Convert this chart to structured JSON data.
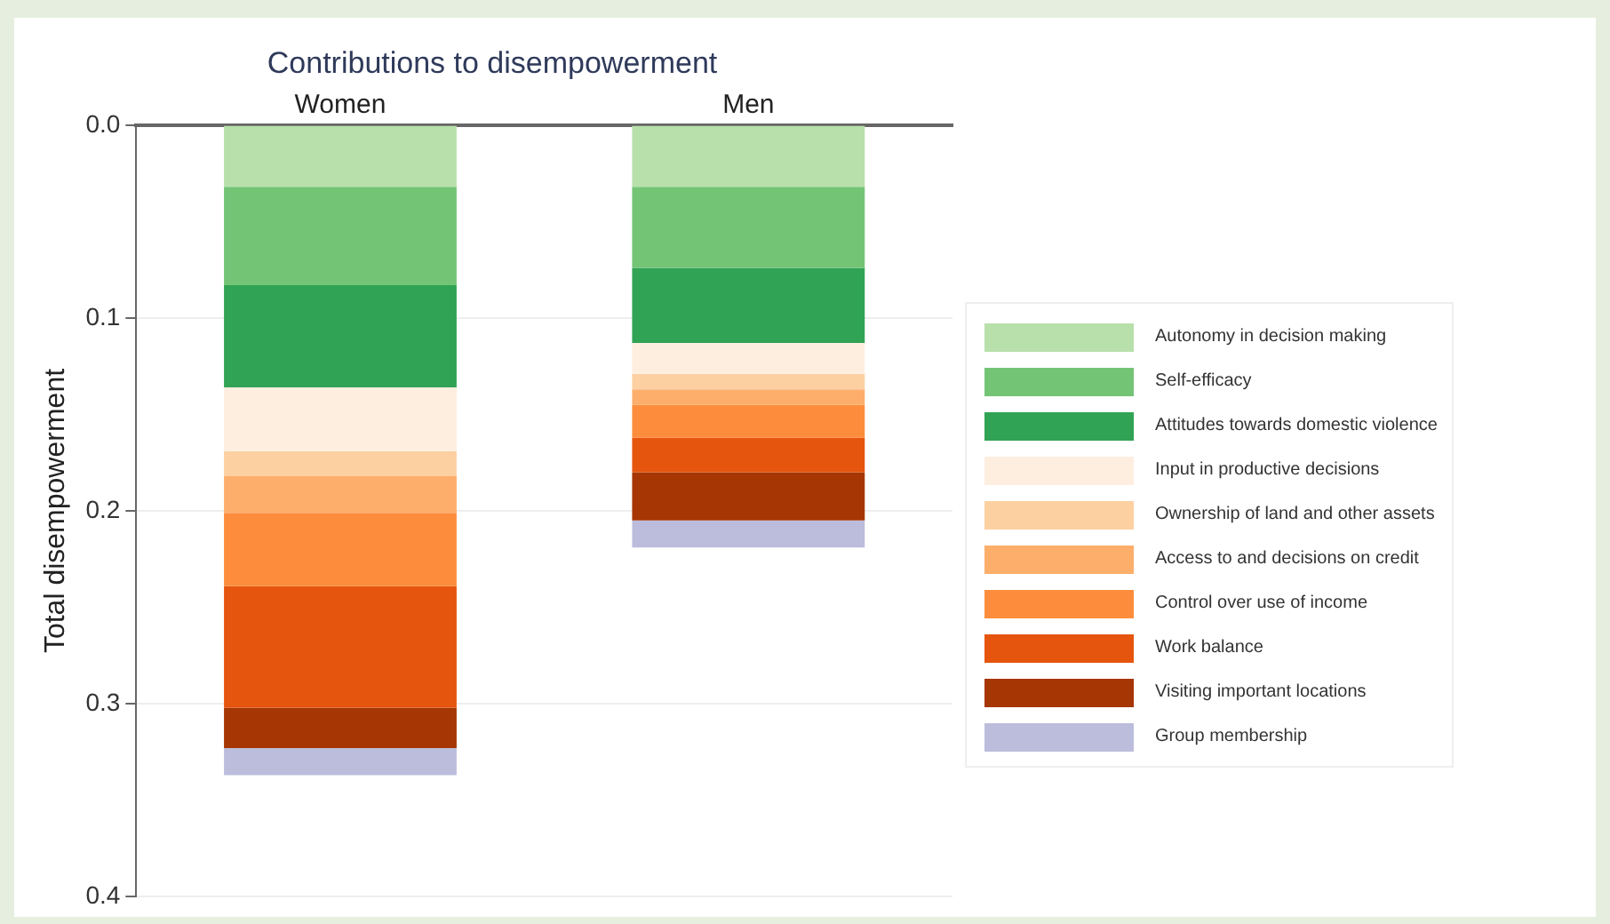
{
  "chart_data": {
    "type": "bar",
    "title": "Contributions to disempowerment",
    "ylabel": "Total disempowerment",
    "categories": [
      "Women",
      "Men"
    ],
    "stacked": true,
    "series": [
      {
        "name": "Autonomy in decision making",
        "color": "#b8e0aa",
        "values": [
          0.032,
          0.032
        ]
      },
      {
        "name": "Self-efficacy",
        "color": "#74c476",
        "values": [
          0.051,
          0.042
        ]
      },
      {
        "name": "Attitudes towards domestic violence",
        "color": "#31a354",
        "values": [
          0.053,
          0.039
        ]
      },
      {
        "name": "Input in productive decisions",
        "color": "#fdeee0",
        "values": [
          0.033,
          0.016
        ]
      },
      {
        "name": "Ownership of land and other assets",
        "color": "#fdd0a2",
        "values": [
          0.013,
          0.008
        ]
      },
      {
        "name": "Access to and decisions on credit",
        "color": "#fdae6b",
        "values": [
          0.019,
          0.008
        ]
      },
      {
        "name": "Control over use of income",
        "color": "#fd8d3c",
        "values": [
          0.038,
          0.017
        ]
      },
      {
        "name": "Work balance",
        "color": "#e6550d",
        "values": [
          0.063,
          0.018
        ]
      },
      {
        "name": "Visiting important locations",
        "color": "#a63603",
        "values": [
          0.021,
          0.025
        ]
      },
      {
        "name": "Group membership",
        "color": "#bcbddc",
        "values": [
          0.014,
          0.014
        ]
      }
    ],
    "ylim": [
      0.4,
      0
    ],
    "yticks": [
      {
        "value": 0,
        "label": "0.0"
      },
      {
        "value": 0.1,
        "label": "0.1"
      },
      {
        "value": 0.2,
        "label": "0.2"
      },
      {
        "value": 0.3,
        "label": "0.3"
      },
      {
        "value": 0.4,
        "label": "0.4"
      }
    ],
    "grid": "y",
    "legend": "right"
  }
}
